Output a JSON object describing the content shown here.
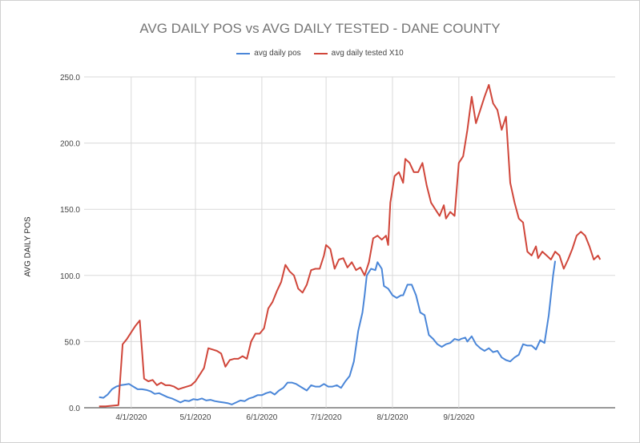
{
  "chart_data": {
    "type": "line",
    "title": "AVG DAILY POS vs AVG DAILY TESTED - DANE COUNTY",
    "xlabel": "",
    "ylabel": "AVG DAILY POS",
    "ylim": [
      0,
      250
    ],
    "y_ticks": [
      "0.0",
      "50.0",
      "100.0",
      "150.0",
      "200.0",
      "250.0"
    ],
    "x_ticks": [
      {
        "label": "4/1/2020",
        "x": "2020-04-01"
      },
      {
        "label": "5/1/2020",
        "x": "2020-05-01"
      },
      {
        "label": "6/1/2020",
        "x": "2020-06-01"
      },
      {
        "label": "7/1/2020",
        "x": "2020-07-01"
      },
      {
        "label": "8/1/2020",
        "x": "2020-08-01"
      },
      {
        "label": "9/1/2020",
        "x": "2020-09-01"
      }
    ],
    "grid": true,
    "legend_position": "top",
    "series": [
      {
        "name": "avg daily pos",
        "color": "#4a86d8",
        "points": [
          [
            "2020-03-17",
            8
          ],
          [
            "2020-03-19",
            7.5
          ],
          [
            "2020-03-21",
            10
          ],
          [
            "2020-03-23",
            14
          ],
          [
            "2020-03-25",
            16
          ],
          [
            "2020-03-27",
            17
          ],
          [
            "2020-03-29",
            17.5
          ],
          [
            "2020-03-31",
            18
          ],
          [
            "2020-04-02",
            16
          ],
          [
            "2020-04-04",
            14
          ],
          [
            "2020-04-06",
            14
          ],
          [
            "2020-04-08",
            13.5
          ],
          [
            "2020-04-10",
            12.5
          ],
          [
            "2020-04-12",
            10.5
          ],
          [
            "2020-04-14",
            11
          ],
          [
            "2020-04-16",
            9.5
          ],
          [
            "2020-04-18",
            8
          ],
          [
            "2020-04-20",
            7
          ],
          [
            "2020-04-22",
            5.5
          ],
          [
            "2020-04-24",
            4
          ],
          [
            "2020-04-26",
            5.5
          ],
          [
            "2020-04-28",
            5
          ],
          [
            "2020-04-30",
            6.5
          ],
          [
            "2020-05-02",
            6
          ],
          [
            "2020-05-04",
            7
          ],
          [
            "2020-05-06",
            5.5
          ],
          [
            "2020-05-08",
            6
          ],
          [
            "2020-05-10",
            5
          ],
          [
            "2020-05-12",
            4.5
          ],
          [
            "2020-05-14",
            4
          ],
          [
            "2020-05-16",
            3.5
          ],
          [
            "2020-05-18",
            2.5
          ],
          [
            "2020-05-20",
            4
          ],
          [
            "2020-05-22",
            5.5
          ],
          [
            "2020-05-24",
            5
          ],
          [
            "2020-05-26",
            7
          ],
          [
            "2020-05-28",
            8
          ],
          [
            "2020-05-30",
            9.5
          ],
          [
            "2020-06-01",
            9.5
          ],
          [
            "2020-06-03",
            11
          ],
          [
            "2020-06-05",
            12
          ],
          [
            "2020-06-07",
            10
          ],
          [
            "2020-06-09",
            13
          ],
          [
            "2020-06-11",
            15
          ],
          [
            "2020-06-13",
            19
          ],
          [
            "2020-06-15",
            19
          ],
          [
            "2020-06-17",
            18
          ],
          [
            "2020-06-19",
            16
          ],
          [
            "2020-06-21",
            14
          ],
          [
            "2020-06-22",
            13
          ],
          [
            "2020-06-24",
            17
          ],
          [
            "2020-06-26",
            16
          ],
          [
            "2020-06-28",
            16
          ],
          [
            "2020-06-30",
            18
          ],
          [
            "2020-07-02",
            16
          ],
          [
            "2020-07-04",
            16
          ],
          [
            "2020-07-06",
            17
          ],
          [
            "2020-07-08",
            15
          ],
          [
            "2020-07-10",
            20
          ],
          [
            "2020-07-12",
            24
          ],
          [
            "2020-07-14",
            35
          ],
          [
            "2020-07-16",
            58
          ],
          [
            "2020-07-18",
            72
          ],
          [
            "2020-07-19",
            85
          ],
          [
            "2020-07-20",
            100
          ],
          [
            "2020-07-22",
            105
          ],
          [
            "2020-07-24",
            104
          ],
          [
            "2020-07-25",
            110
          ],
          [
            "2020-07-27",
            105
          ],
          [
            "2020-07-28",
            92
          ],
          [
            "2020-07-30",
            90
          ],
          [
            "2020-08-01",
            85
          ],
          [
            "2020-08-03",
            83
          ],
          [
            "2020-08-05",
            85
          ],
          [
            "2020-08-06",
            85
          ],
          [
            "2020-08-08",
            93
          ],
          [
            "2020-08-10",
            93
          ],
          [
            "2020-08-12",
            85
          ],
          [
            "2020-08-14",
            72
          ],
          [
            "2020-08-16",
            70
          ],
          [
            "2020-08-18",
            55
          ],
          [
            "2020-08-20",
            52
          ],
          [
            "2020-08-22",
            48
          ],
          [
            "2020-08-24",
            46
          ],
          [
            "2020-08-26",
            48
          ],
          [
            "2020-08-28",
            49
          ],
          [
            "2020-08-30",
            52
          ],
          [
            "2020-09-01",
            51
          ],
          [
            "2020-09-02",
            52
          ],
          [
            "2020-09-04",
            53
          ],
          [
            "2020-09-05",
            50
          ],
          [
            "2020-09-07",
            54
          ],
          [
            "2020-09-09",
            48
          ],
          [
            "2020-09-11",
            45
          ],
          [
            "2020-09-13",
            43
          ],
          [
            "2020-09-15",
            45
          ],
          [
            "2020-09-17",
            42
          ],
          [
            "2020-09-19",
            43
          ],
          [
            "2020-09-21",
            38
          ],
          [
            "2020-09-23",
            36
          ],
          [
            "2020-09-25",
            35
          ],
          [
            "2020-09-27",
            38
          ],
          [
            "2020-09-29",
            40
          ],
          [
            "2020-10-01",
            48
          ],
          [
            "2020-10-03",
            47
          ],
          [
            "2020-10-05",
            47
          ],
          [
            "2020-10-07",
            44
          ],
          [
            "2020-10-09",
            51
          ],
          [
            "2020-10-11",
            49
          ],
          [
            "2020-10-13",
            70
          ],
          [
            "2020-10-15",
            100
          ],
          [
            "2020-10-16",
            111
          ]
        ]
      },
      {
        "name": "avg daily tested X10",
        "color": "#d0463a",
        "points": [
          [
            "2020-03-17",
            1
          ],
          [
            "2020-03-20",
            1
          ],
          [
            "2020-03-23",
            1.5
          ],
          [
            "2020-03-26",
            2
          ],
          [
            "2020-03-28",
            48
          ],
          [
            "2020-03-30",
            52
          ],
          [
            "2020-04-01",
            57
          ],
          [
            "2020-04-03",
            62
          ],
          [
            "2020-04-05",
            66
          ],
          [
            "2020-04-07",
            22
          ],
          [
            "2020-04-09",
            20
          ],
          [
            "2020-04-11",
            21
          ],
          [
            "2020-04-13",
            17
          ],
          [
            "2020-04-15",
            19
          ],
          [
            "2020-04-17",
            17
          ],
          [
            "2020-04-19",
            17
          ],
          [
            "2020-04-21",
            16
          ],
          [
            "2020-04-23",
            14
          ],
          [
            "2020-04-25",
            15
          ],
          [
            "2020-04-27",
            16
          ],
          [
            "2020-04-29",
            17
          ],
          [
            "2020-05-01",
            20
          ],
          [
            "2020-05-03",
            25
          ],
          [
            "2020-05-05",
            30
          ],
          [
            "2020-05-07",
            45
          ],
          [
            "2020-05-09",
            44
          ],
          [
            "2020-05-11",
            43
          ],
          [
            "2020-05-13",
            41
          ],
          [
            "2020-05-15",
            31
          ],
          [
            "2020-05-17",
            36
          ],
          [
            "2020-05-19",
            37
          ],
          [
            "2020-05-21",
            37
          ],
          [
            "2020-05-23",
            39
          ],
          [
            "2020-05-25",
            37
          ],
          [
            "2020-05-27",
            50
          ],
          [
            "2020-05-29",
            56
          ],
          [
            "2020-05-31",
            56
          ],
          [
            "2020-06-02",
            60
          ],
          [
            "2020-06-04",
            75
          ],
          [
            "2020-06-06",
            80
          ],
          [
            "2020-06-08",
            88
          ],
          [
            "2020-06-10",
            95
          ],
          [
            "2020-06-12",
            108
          ],
          [
            "2020-06-14",
            103
          ],
          [
            "2020-06-16",
            100
          ],
          [
            "2020-06-18",
            90
          ],
          [
            "2020-06-20",
            87
          ],
          [
            "2020-06-22",
            93
          ],
          [
            "2020-06-24",
            104
          ],
          [
            "2020-06-26",
            105
          ],
          [
            "2020-06-28",
            105
          ],
          [
            "2020-06-30",
            115
          ],
          [
            "2020-07-01",
            123
          ],
          [
            "2020-07-03",
            120
          ],
          [
            "2020-07-05",
            105
          ],
          [
            "2020-07-07",
            112
          ],
          [
            "2020-07-09",
            113
          ],
          [
            "2020-07-11",
            106
          ],
          [
            "2020-07-13",
            110
          ],
          [
            "2020-07-15",
            104
          ],
          [
            "2020-07-17",
            106
          ],
          [
            "2020-07-19",
            100
          ],
          [
            "2020-07-21",
            110
          ],
          [
            "2020-07-23",
            128
          ],
          [
            "2020-07-25",
            130
          ],
          [
            "2020-07-27",
            127
          ],
          [
            "2020-07-29",
            130
          ],
          [
            "2020-07-30",
            123
          ],
          [
            "2020-07-31",
            155
          ],
          [
            "2020-08-02",
            175
          ],
          [
            "2020-08-04",
            178
          ],
          [
            "2020-08-06",
            170
          ],
          [
            "2020-08-07",
            188
          ],
          [
            "2020-08-09",
            185
          ],
          [
            "2020-08-11",
            178
          ],
          [
            "2020-08-13",
            178
          ],
          [
            "2020-08-15",
            185
          ],
          [
            "2020-08-17",
            168
          ],
          [
            "2020-08-19",
            155
          ],
          [
            "2020-08-21",
            150
          ],
          [
            "2020-08-23",
            145
          ],
          [
            "2020-08-25",
            153
          ],
          [
            "2020-08-26",
            143
          ],
          [
            "2020-08-28",
            148
          ],
          [
            "2020-08-30",
            145
          ],
          [
            "2020-09-01",
            185
          ],
          [
            "2020-09-03",
            190
          ],
          [
            "2020-09-05",
            210
          ],
          [
            "2020-09-07",
            235
          ],
          [
            "2020-09-09",
            215
          ],
          [
            "2020-09-11",
            225
          ],
          [
            "2020-09-13",
            235
          ],
          [
            "2020-09-15",
            244
          ],
          [
            "2020-09-17",
            230
          ],
          [
            "2020-09-19",
            225
          ],
          [
            "2020-09-21",
            210
          ],
          [
            "2020-09-23",
            220
          ],
          [
            "2020-09-25",
            170
          ],
          [
            "2020-09-27",
            155
          ],
          [
            "2020-09-29",
            143
          ],
          [
            "2020-10-01",
            140
          ],
          [
            "2020-10-03",
            118
          ],
          [
            "2020-10-05",
            115
          ],
          [
            "2020-10-07",
            122
          ],
          [
            "2020-10-08",
            113
          ],
          [
            "2020-10-10",
            118
          ],
          [
            "2020-10-12",
            115
          ],
          [
            "2020-10-14",
            112
          ],
          [
            "2020-10-16",
            118
          ],
          [
            "2020-10-18",
            115
          ],
          [
            "2020-10-20",
            105
          ],
          [
            "2020-10-22",
            112
          ],
          [
            "2020-10-24",
            120
          ],
          [
            "2020-10-26",
            130
          ],
          [
            "2020-10-28",
            133
          ],
          [
            "2020-10-30",
            130
          ],
          [
            "2020-11-01",
            122
          ],
          [
            "2020-11-03",
            112
          ],
          [
            "2020-11-05",
            115
          ],
          [
            "2020-11-06",
            112
          ]
        ]
      }
    ]
  }
}
